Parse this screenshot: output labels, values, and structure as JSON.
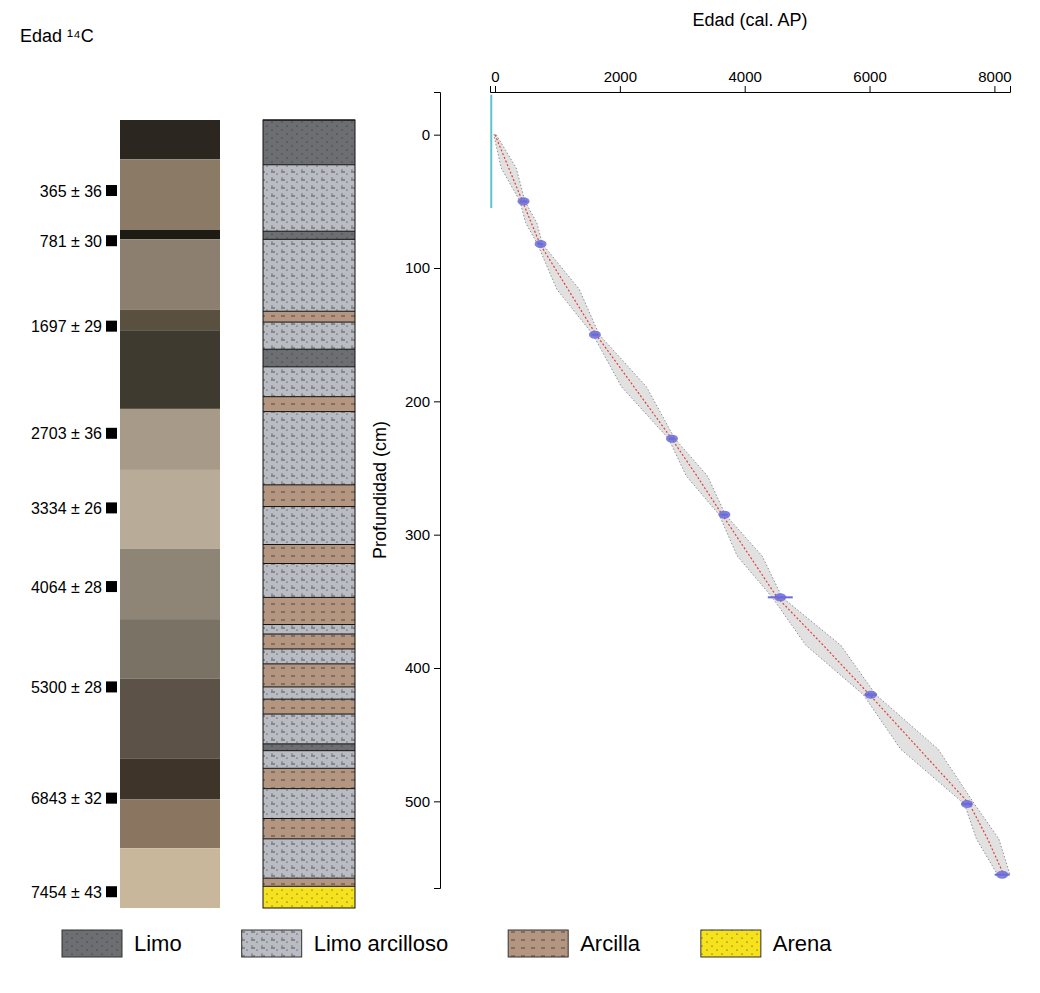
{
  "core": {
    "title": "Edad ¹⁴C",
    "samples": [
      {
        "label": "365 ± 36",
        "depth": 52
      },
      {
        "label": "781 ± 30",
        "depth": 89
      },
      {
        "label": "1697 ± 29",
        "depth": 152
      },
      {
        "label": "2703 ± 36",
        "depth": 231
      },
      {
        "label": "3334 ± 26",
        "depth": 286
      },
      {
        "label": "4064 ± 28",
        "depth": 344
      },
      {
        "label": "5300 ± 28",
        "depth": 418
      },
      {
        "label": "6843 ± 32",
        "depth": 500
      },
      {
        "label": "7454 ± 43",
        "depth": 569
      }
    ],
    "photo": [
      {
        "top": 0,
        "bottom": 29,
        "color": "#2b2620"
      },
      {
        "top": 29,
        "bottom": 81,
        "color": "#8a7a66"
      },
      {
        "top": 81,
        "bottom": 88,
        "color": "#1e1a14"
      },
      {
        "top": 88,
        "bottom": 140,
        "color": "#8c7f70"
      },
      {
        "top": 140,
        "bottom": 155,
        "color": "#5a5040"
      },
      {
        "top": 155,
        "bottom": 213,
        "color": "#3e3a30"
      },
      {
        "top": 213,
        "bottom": 258,
        "color": "#a89a88"
      },
      {
        "top": 258,
        "bottom": 316,
        "color": "#b8ab98"
      },
      {
        "top": 316,
        "bottom": 368,
        "color": "#8e8576"
      },
      {
        "top": 368,
        "bottom": 412,
        "color": "#7a7264"
      },
      {
        "top": 412,
        "bottom": 471,
        "color": "#5c5248"
      },
      {
        "top": 471,
        "bottom": 501,
        "color": "#3e342a"
      },
      {
        "top": 501,
        "bottom": 537,
        "color": "#8a7560"
      },
      {
        "top": 537,
        "bottom": 581,
        "color": "#c9b79c"
      }
    ]
  },
  "lithology": {
    "layers": [
      {
        "lithology": "Limo",
        "top": 0,
        "bottom": 33
      },
      {
        "lithology": "Limo arcilloso",
        "top": 33,
        "bottom": 82
      },
      {
        "lithology": "Limo",
        "top": 82,
        "bottom": 88
      },
      {
        "lithology": "Limo arcilloso",
        "top": 88,
        "bottom": 141
      },
      {
        "lithology": "Arcilla",
        "top": 141,
        "bottom": 149
      },
      {
        "lithology": "Limo arcilloso",
        "top": 149,
        "bottom": 169
      },
      {
        "lithology": "Limo",
        "top": 169,
        "bottom": 182
      },
      {
        "lithology": "Limo arcilloso",
        "top": 182,
        "bottom": 204
      },
      {
        "lithology": "Arcilla",
        "top": 204,
        "bottom": 215
      },
      {
        "lithology": "Limo arcilloso",
        "top": 215,
        "bottom": 269
      },
      {
        "lithology": "Arcilla",
        "top": 269,
        "bottom": 285
      },
      {
        "lithology": "Limo arcilloso",
        "top": 285,
        "bottom": 313
      },
      {
        "lithology": "Arcilla",
        "top": 313,
        "bottom": 327
      },
      {
        "lithology": "Limo arcilloso",
        "top": 327,
        "bottom": 352
      },
      {
        "lithology": "Arcilla",
        "top": 352,
        "bottom": 372
      },
      {
        "lithology": "Limo arcilloso",
        "top": 372,
        "bottom": 379
      },
      {
        "lithology": "Arcilla",
        "top": 379,
        "bottom": 390
      },
      {
        "lithology": "Limo arcilloso",
        "top": 390,
        "bottom": 401
      },
      {
        "lithology": "Arcilla",
        "top": 401,
        "bottom": 418
      },
      {
        "lithology": "Limo arcilloso",
        "top": 418,
        "bottom": 427
      },
      {
        "lithology": "Arcilla",
        "top": 427,
        "bottom": 438
      },
      {
        "lithology": "Limo arcilloso",
        "top": 438,
        "bottom": 460
      },
      {
        "lithology": "Limo",
        "top": 460,
        "bottom": 465
      },
      {
        "lithology": "Limo arcilloso",
        "top": 465,
        "bottom": 478
      },
      {
        "lithology": "Arcilla",
        "top": 478,
        "bottom": 493
      },
      {
        "lithology": "Limo arcilloso",
        "top": 493,
        "bottom": 515
      },
      {
        "lithology": "Arcilla",
        "top": 515,
        "bottom": 530
      },
      {
        "lithology": "Limo arcilloso",
        "top": 530,
        "bottom": 559
      },
      {
        "lithology": "Arcilla",
        "top": 559,
        "bottom": 565
      },
      {
        "lithology": "Arena",
        "top": 565,
        "bottom": 581
      }
    ],
    "legend": [
      {
        "label": "Limo",
        "color": "#6d6e72"
      },
      {
        "label": "Limo arcilloso",
        "color": "#b9bcc2"
      },
      {
        "label": "Arcilla",
        "color": "#b39580"
      },
      {
        "label": "Arena",
        "color": "#f5e11c"
      }
    ]
  },
  "chart_data": {
    "type": "line",
    "x_label": "Edad (cal. AP)",
    "y_label": "Profundidad (cm)",
    "xlim": [
      -80,
      8250
    ],
    "ylim": [
      -32,
      565
    ],
    "xticks": [
      0,
      2000,
      4000,
      6000,
      8000
    ],
    "yticks": [
      0,
      100,
      200,
      300,
      400,
      500
    ],
    "series": [
      {
        "type": "area",
        "color": "#bdbdbd",
        "y": [
          0,
          25,
          50,
          66,
          82,
          116,
          150,
          189,
          228,
          256,
          285,
          316,
          347,
          383,
          420,
          461,
          502,
          528,
          555
        ],
        "x_low": [
          -20,
          100,
          400,
          490,
          680,
          990,
          1570,
          2025,
          2780,
          3065,
          3590,
          3880,
          4440,
          4980,
          5900,
          6500,
          7520,
          7710,
          8050
        ],
        "x_high": [
          20,
          340,
          480,
          670,
          760,
          1350,
          1670,
          2425,
          2880,
          3405,
          3690,
          4280,
          4600,
          5540,
          6100,
          7100,
          7680,
          8070,
          8250
        ]
      },
      {
        "type": "line",
        "line_style": "dotted",
        "color": "#e0403a",
        "y": [
          0,
          25,
          50,
          66,
          82,
          116,
          150,
          189,
          228,
          256,
          285,
          316,
          347,
          383,
          420,
          461,
          502,
          528,
          555
        ],
        "x": [
          0,
          220,
          440,
          580,
          720,
          1170,
          1620,
          2225,
          2830,
          3235,
          3640,
          4080,
          4520,
          5260,
          6000,
          6800,
          7600,
          7890,
          8150
        ]
      },
      {
        "type": "scatter",
        "marker": "ellipse",
        "color": "#6a6ad8",
        "y": [
          50,
          82,
          150,
          228,
          285,
          347,
          420,
          502,
          555
        ],
        "x": [
          457,
          730,
          1600,
          2835,
          3675,
          4570,
          6020,
          7560,
          8125
        ],
        "x_error": [
          60,
          40,
          60,
          50,
          60,
          200,
          100,
          80,
          120
        ]
      },
      {
        "type": "line",
        "color": "#5fc4c8",
        "y": [
          -30,
          55
        ],
        "x": [
          -60,
          -60
        ]
      }
    ]
  }
}
